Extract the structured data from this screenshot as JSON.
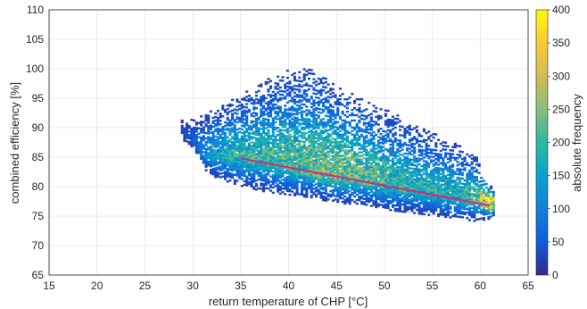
{
  "chart_data": {
    "type": "heatmap",
    "title": "",
    "xlabel": "return temperature of CHP [°C]",
    "ylabel": "combined efficiency [%]",
    "xlim": [
      15,
      65
    ],
    "ylim": [
      65,
      110
    ],
    "xticks": [
      "15",
      "20",
      "25",
      "30",
      "35",
      "40",
      "45",
      "50",
      "55",
      "60",
      "65"
    ],
    "yticks": [
      "65",
      "70",
      "75",
      "80",
      "85",
      "90",
      "95",
      "100",
      "105",
      "110"
    ],
    "grid": true,
    "colorbar": {
      "label": "absolute frequency",
      "range": [
        0,
        400
      ],
      "ticks": [
        "0",
        "50",
        "100",
        "150",
        "200",
        "250",
        "300",
        "350",
        "400"
      ],
      "colormap": "parula"
    },
    "density_region": {
      "description_points": [
        {
          "x": 28.5,
          "y_low": 88.5,
          "y_high": 91,
          "peak": 10
        },
        {
          "x": 30,
          "y_low": 86,
          "y_high": 91.5,
          "peak": 40
        },
        {
          "x": 31.5,
          "y_low": 82,
          "y_high": 93,
          "peak": 110
        },
        {
          "x": 33,
          "y_low": 81,
          "y_high": 94,
          "peak": 160
        },
        {
          "x": 35,
          "y_low": 80,
          "y_high": 95.5,
          "peak": 180
        },
        {
          "x": 37.5,
          "y_low": 79,
          "y_high": 98,
          "peak": 190
        },
        {
          "x": 40,
          "y_low": 78.5,
          "y_high": 100,
          "peak": 200
        },
        {
          "x": 42.5,
          "y_low": 78,
          "y_high": 100,
          "peak": 230
        },
        {
          "x": 45,
          "y_low": 77,
          "y_high": 97,
          "peak": 240
        },
        {
          "x": 47.5,
          "y_low": 77,
          "y_high": 95,
          "peak": 220
        },
        {
          "x": 50,
          "y_low": 76,
          "y_high": 93,
          "peak": 200
        },
        {
          "x": 52.5,
          "y_low": 75.5,
          "y_high": 91,
          "peak": 180
        },
        {
          "x": 55,
          "y_low": 75,
          "y_high": 89,
          "peak": 170
        },
        {
          "x": 57.5,
          "y_low": 74.5,
          "y_high": 87,
          "peak": 170
        },
        {
          "x": 59.5,
          "y_low": 74,
          "y_high": 85,
          "peak": 220
        },
        {
          "x": 61,
          "y_low": 74.5,
          "y_high": 80,
          "peak": 400
        },
        {
          "x": 61.5,
          "y_low": 75,
          "y_high": 79,
          "peak": 280
        }
      ]
    },
    "series": [
      {
        "type": "line",
        "color": "#d9267a",
        "x": [
          35,
          61
        ],
        "y": [
          84.8,
          76.8
        ]
      }
    ]
  }
}
